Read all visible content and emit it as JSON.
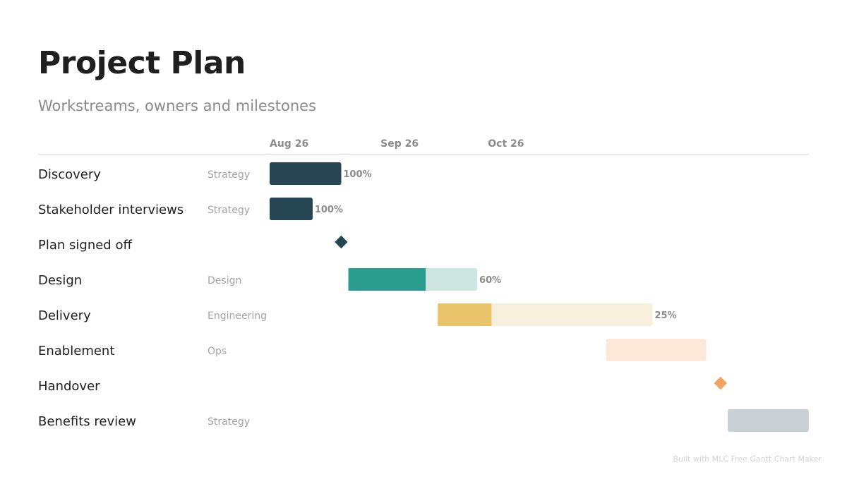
{
  "page": {
    "title": "Project Plan",
    "subtitle": "Workstreams, owners and milestones",
    "footer": "Built with MLC Free Gantt Chart Maker"
  },
  "chart_data": {
    "type": "gantt",
    "title": "Project Plan",
    "subtitle": "Workstreams, owners and milestones",
    "x_axis": {
      "type": "date",
      "range": [
        "2025-08-26",
        "2025-11-24"
      ],
      "ticks": [
        {
          "date": "2025-08-26",
          "label": "Aug 26"
        },
        {
          "date": "2025-09-26",
          "label": "Sep 26"
        },
        {
          "date": "2025-10-26",
          "label": "Oct 26"
        }
      ]
    },
    "tasks": [
      {
        "name": "Discovery",
        "owner": "Strategy",
        "start": "2025-08-26",
        "end": "2025-09-15",
        "progress": 100,
        "progress_label": "100%",
        "color": "#264653",
        "track_color": "#264653"
      },
      {
        "name": "Stakeholder interviews",
        "owner": "Strategy",
        "start": "2025-08-26",
        "end": "2025-09-07",
        "progress": 100,
        "progress_label": "100%",
        "color": "#264653",
        "track_color": "#264653"
      },
      {
        "name": "Plan signed off",
        "owner": "",
        "milestone": true,
        "date": "2025-09-15",
        "color": "#264653"
      },
      {
        "name": "Design",
        "owner": "Design",
        "start": "2025-09-17",
        "end": "2025-10-23",
        "progress": 60,
        "progress_label": "60%",
        "color": "#2a9d8f",
        "track_color": "#cde6e2"
      },
      {
        "name": "Delivery",
        "owner": "Engineering",
        "start": "2025-10-12",
        "end": "2025-12-11",
        "progress": 25,
        "progress_label": "25%",
        "color": "#e9c46a",
        "track_color": "#f8f0dc"
      },
      {
        "name": "Enablement",
        "owner": "Ops",
        "start": "2025-11-28",
        "end": "2025-12-26",
        "progress": 0,
        "progress_label": "",
        "color": "#f4a261",
        "track_color": "#fce7d9"
      },
      {
        "name": "Handover",
        "owner": "",
        "milestone": true,
        "date": "2025-12-30",
        "color": "#f4a261"
      },
      {
        "name": "Benefits review",
        "owner": "Strategy",
        "start": "2026-01-01",
        "end": "2026-01-24",
        "progress": 0,
        "progress_label": "",
        "color": "#c9d0d4",
        "track_color": "#c9d0d4"
      }
    ]
  }
}
